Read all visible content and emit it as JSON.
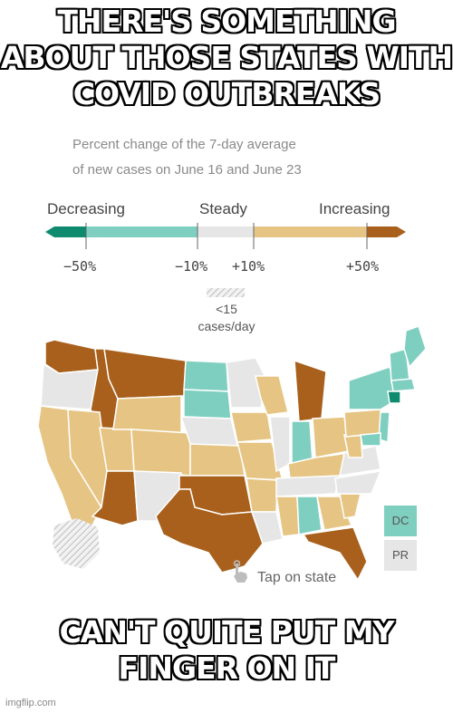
{
  "meme": {
    "top_text": "THERE'S SOMETHING ABOUT THOSE STATES WITH COVID OUTBREAKS",
    "bottom_text": "CAN'T QUITE PUT MY FINGER ON IT",
    "watermark": "imgflip.com"
  },
  "figure": {
    "subtitle_line1": "Percent change of the 7-day average",
    "subtitle_line2": "of new cases on June 16 and June 23",
    "legend": {
      "decreasing": "Decreasing",
      "steady": "Steady",
      "increasing": "Increasing",
      "ticks": [
        "−50%",
        "−10%",
        "+10%",
        "+50%"
      ],
      "low_cases_line1": "<15",
      "low_cases_line2": "cases/day"
    },
    "boxes": {
      "dc": "DC",
      "pr": "PR"
    },
    "tap_hint": "Tap on state"
  },
  "colors": {
    "strong_decrease": "#0e8a6e",
    "decrease": "#7fcfc0",
    "steady": "#e6e6e6",
    "increase": "#e6c584",
    "strong_increase": "#a8601c"
  }
}
